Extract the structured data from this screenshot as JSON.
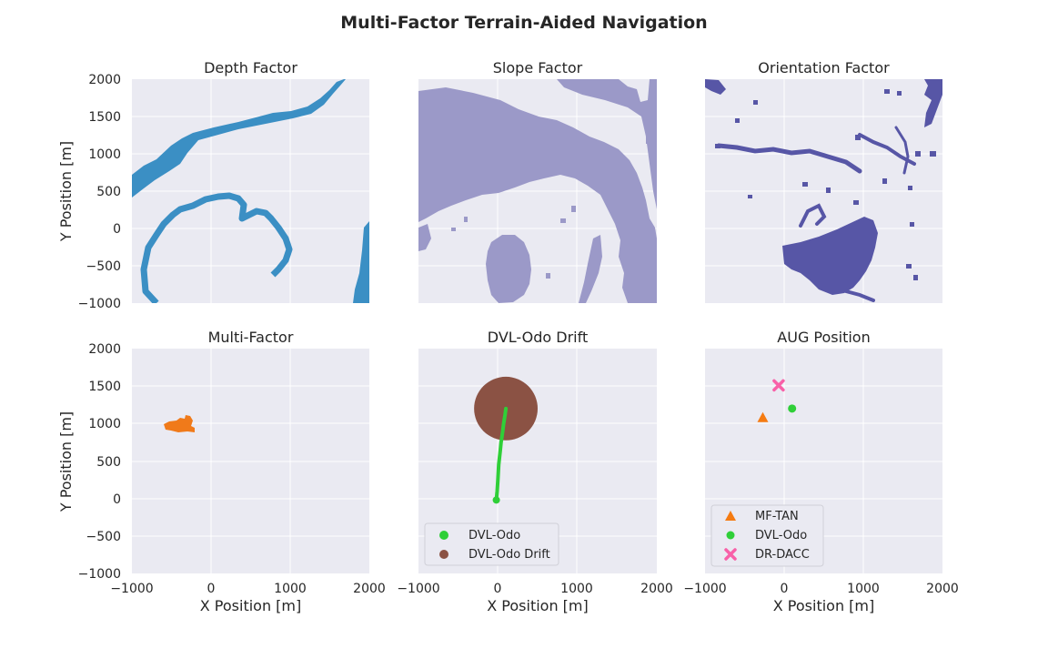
{
  "figure": {
    "title": "Multi-Factor Terrain-Aided Navigation"
  },
  "colors": {
    "panel_bg": "#eaeaf2",
    "grid": "#ffffff",
    "depth": "#3b8fc4",
    "slope": "#9b99c8",
    "orientation": "#5756a6",
    "multi": "#f07a1a",
    "dvl": "#2fcf38",
    "drift": "#8b5244",
    "mftan": "#f57b12",
    "drdacc": "#f860a8"
  },
  "chart_data": [
    {
      "id": "depth",
      "type": "heatmap",
      "title": "Depth Factor",
      "xlim": [
        -1000,
        2000
      ],
      "ylim": [
        -1000,
        2000
      ],
      "xticks": [
        -1000,
        0,
        1000,
        2000
      ],
      "yticks": [
        2000,
        1500,
        1000,
        500,
        0,
        -500,
        -1000
      ],
      "ytick_labels": [
        "2000",
        "1500",
        "1000",
        "500",
        "0",
        "−500",
        "−1000"
      ],
      "ylabel": "Y Position [m]",
      "xlabel": "",
      "features": [
        {
          "name": "upper-contour-band",
          "points": [
            [
              -1000,
              600
            ],
            [
              -800,
              900
            ],
            [
              -600,
              1100
            ],
            [
              -400,
              1250
            ],
            [
              -200,
              1350
            ],
            [
              200,
              1450
            ],
            [
              600,
              1520
            ],
            [
              900,
              1560
            ],
            [
              1100,
              1650
            ],
            [
              1300,
              1750
            ],
            [
              1500,
              1850
            ],
            [
              1700,
              2000
            ]
          ]
        },
        {
          "name": "ring-contour",
          "points": [
            [
              -800,
              -1000
            ],
            [
              -820,
              -650
            ],
            [
              -700,
              -300
            ],
            [
              -600,
              -50
            ],
            [
              -500,
              150
            ],
            [
              -300,
              330
            ],
            [
              0,
              400
            ],
            [
              300,
              380
            ],
            [
              400,
              200
            ],
            [
              500,
              50
            ],
            [
              800,
              -100
            ],
            [
              950,
              -200
            ],
            [
              900,
              -450
            ],
            [
              800,
              -550
            ]
          ]
        },
        {
          "name": "right-edge-band",
          "points": [
            [
              1950,
              -1000
            ],
            [
              1970,
              -500
            ],
            [
              2000,
              100
            ]
          ]
        }
      ]
    },
    {
      "id": "slope",
      "type": "heatmap",
      "title": "Slope Factor",
      "xlim": [
        -1000,
        2000
      ],
      "ylim": [
        -1000,
        2000
      ],
      "xticks": [
        -1000,
        0,
        1000,
        2000
      ],
      "xlabel": "",
      "ylabel": ""
    },
    {
      "id": "orientation",
      "type": "heatmap",
      "title": "Orientation Factor",
      "xlim": [
        -1000,
        2000
      ],
      "ylim": [
        -1000,
        2000
      ],
      "xlabel": "",
      "ylabel": ""
    },
    {
      "id": "multi",
      "type": "heatmap",
      "title": "Multi-Factor",
      "xlim": [
        -1000,
        2000
      ],
      "ylim": [
        -1000,
        2000
      ],
      "xticks": [
        -1000,
        0,
        1000,
        2000
      ],
      "xtick_labels": [
        "−1000",
        "0",
        "1000",
        "2000"
      ],
      "yticks": [
        2000,
        1500,
        1000,
        500,
        0,
        -500,
        -1000
      ],
      "ytick_labels": [
        "2000",
        "1500",
        "1000",
        "500",
        "0",
        "−500",
        "−1000"
      ],
      "xlabel": "X Position [m]",
      "ylabel": "Y Position [m]",
      "region": {
        "x_range": [
          -600,
          -200
        ],
        "y_range": [
          880,
          1100
        ],
        "center": [
          -420,
          970
        ]
      }
    },
    {
      "id": "drift",
      "type": "scatter",
      "title": "DVL-Odo Drift",
      "xlim": [
        -1000,
        2000
      ],
      "ylim": [
        -1000,
        2000
      ],
      "xticks": [
        -1000,
        0,
        1000,
        2000
      ],
      "xtick_labels": [
        "−1000",
        "0",
        "1000",
        "2000"
      ],
      "xlabel": "X Position [m]",
      "ylabel": "",
      "series": [
        {
          "name": "DVL-Odo",
          "type": "line",
          "x": [
            -20,
            -10,
            0,
            10,
            20,
            30,
            40,
            50,
            60,
            70,
            80,
            90,
            100
          ],
          "y": [
            -20,
            100,
            250,
            450,
            550,
            650,
            750,
            820,
            900,
            980,
            1050,
            1120,
            1200
          ]
        },
        {
          "name": "DVL-Odo Drift",
          "type": "circle",
          "center": [
            100,
            1200
          ],
          "radius": 400
        }
      ],
      "legend": {
        "position": "lower-left",
        "entries": [
          "DVL-Odo",
          "DVL-Odo Drift"
        ]
      }
    },
    {
      "id": "aug",
      "type": "scatter",
      "title": "AUG Position",
      "xlim": [
        -1000,
        2000
      ],
      "ylim": [
        -1000,
        2000
      ],
      "xticks": [
        -1000,
        0,
        1000,
        2000
      ],
      "xtick_labels": [
        "−1000",
        "0",
        "1000",
        "2000"
      ],
      "xlabel": "X Position [m]",
      "ylabel": "",
      "series": [
        {
          "name": "MF-TAN",
          "marker": "triangle",
          "x": -270,
          "y": 1080
        },
        {
          "name": "DVL-Odo",
          "marker": "circle",
          "x": 100,
          "y": 1200
        },
        {
          "name": "DR-DACC",
          "marker": "x",
          "x": -70,
          "y": 1510
        }
      ],
      "legend": {
        "position": "lower-left",
        "entries": [
          "MF-TAN",
          "DVL-Odo",
          "DR-DACC"
        ]
      }
    }
  ]
}
